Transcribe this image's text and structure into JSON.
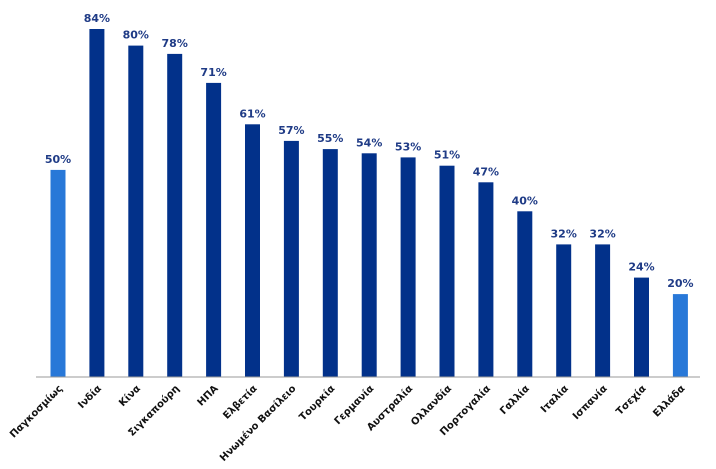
{
  "chart_data": {
    "type": "bar",
    "categories": [
      "Παγκοσμίως",
      "Ινδία",
      "Κίνα",
      "Σιγκαπούρη",
      "ΗΠΑ",
      "Ελβετία",
      "Ηνωμένο Βασίλειο",
      "Τουρκία",
      "Γερμανία",
      "Αυστραλία",
      "Ολλανδία",
      "Πορτογαλία",
      "Γαλλία",
      "Ιταλία",
      "Ισπανία",
      "Τσεχία",
      "Ελλάδα"
    ],
    "values": [
      50,
      84,
      80,
      78,
      71,
      61,
      57,
      55,
      54,
      53,
      51,
      47,
      40,
      32,
      32,
      24,
      20
    ],
    "value_labels": [
      "50%",
      "84%",
      "80%",
      "78%",
      "71%",
      "61%",
      "57%",
      "55%",
      "54%",
      "53%",
      "51%",
      "47%",
      "40%",
      "32%",
      "32%",
      "24%",
      "20%"
    ],
    "highlighted": [
      0,
      16
    ],
    "unit": "%",
    "title": "",
    "xlabel": "",
    "ylabel": "",
    "ylim": [
      0,
      84
    ],
    "grid": false,
    "legend": "none",
    "colors": {
      "bar": "#02318a",
      "highlight": "#2878d8",
      "axis": "#9a9a9a",
      "value_label": "#1f3b86"
    }
  }
}
